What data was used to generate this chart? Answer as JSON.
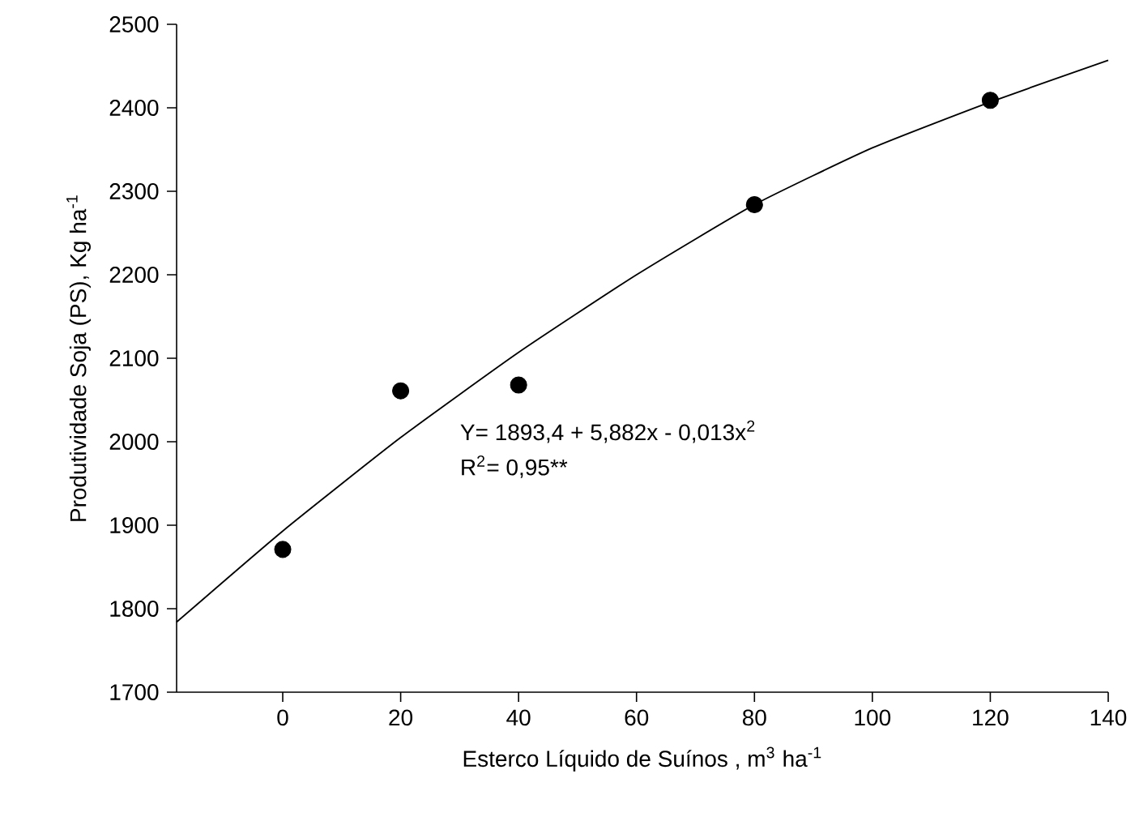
{
  "chart_data": {
    "type": "scatter",
    "xlabel": "Esterco Líquido de Suínos , m$^{3}$ ha$^{-1}$",
    "ylabel": "Produtividade Soja (PS), Kg ha$^{-1}$",
    "annotations": [
      "Y= 1893,4 + 5,882x - 0,013x$^{2}$",
      "R$^{2}$= 0,95**"
    ],
    "xlim": [
      -18,
      140
    ],
    "xticks": [
      0,
      20,
      40,
      60,
      80,
      100,
      120,
      140
    ],
    "ylim": [
      1700,
      2500
    ],
    "yticks": [
      1700,
      1800,
      1900,
      2000,
      2100,
      2200,
      2300,
      2400,
      2500
    ],
    "grid": false,
    "series": [
      {
        "color": "#000000",
        "marker": "circle",
        "x": [
          0,
          20,
          40,
          80,
          120
        ],
        "values": [
          1871,
          2061,
          2068,
          2284,
          2409
        ]
      },
      {
        "type": "line",
        "color": "#000000",
        "marker": "none",
        "line_style": "solid",
        "x": [
          -18,
          0,
          20,
          40,
          60,
          80,
          100,
          120,
          140
        ],
        "values": [
          1784,
          1893,
          2005,
          2107,
          2200,
          2284,
          2352,
          2407,
          2457
        ]
      }
    ]
  }
}
